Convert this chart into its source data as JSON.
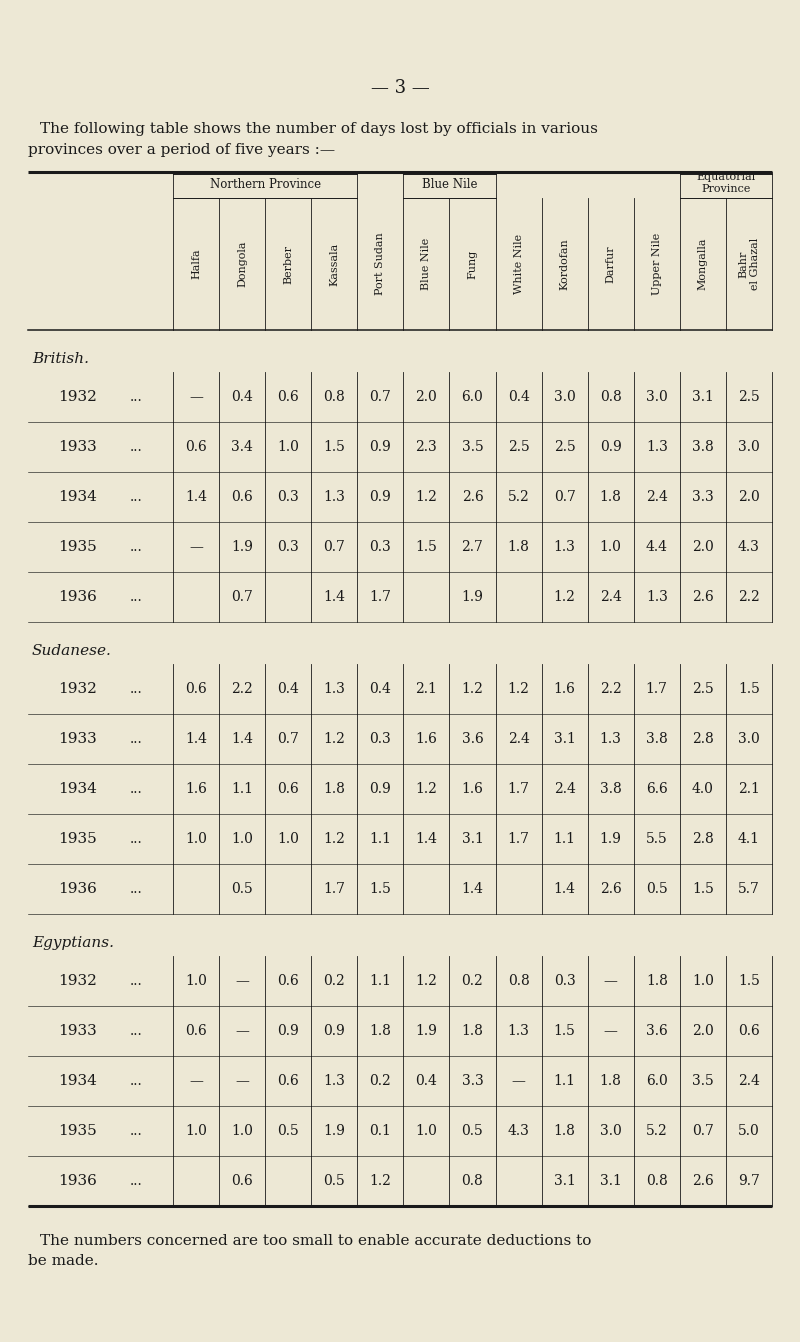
{
  "page_number": "— 3 —",
  "intro_line1": "The following table shows the number of days lost by officials in various",
  "intro_line2": "provinces over a period of five years :—",
  "footer_line1": "The numbers concerned are too small to enable accurate deductions to",
  "footer_line2": "be made.",
  "background_color": "#ede8d5",
  "text_color": "#1a1a1a",
  "columns": [
    "Halfa",
    "Dongola",
    "Berber",
    "Kassala",
    "Port Sudan",
    "Blue Nile",
    "Fung",
    "White Nile",
    "Kordofan",
    "Darfur",
    "Upper Nile",
    "Mongalla",
    "Bahr\nel Ghazal"
  ],
  "sections": [
    {
      "label": "British.",
      "rows": [
        {
          "year": "1932",
          "values": [
            "—",
            "0.4",
            "0.6",
            "0.8",
            "0.7",
            "2.0",
            "6.0",
            "0.4",
            "3.0",
            "0.8",
            "3.0",
            "3.1",
            "2.5"
          ]
        },
        {
          "year": "1933",
          "values": [
            "0.6",
            "3.4",
            "1.0",
            "1.5",
            "0.9",
            "2.3",
            "3.5",
            "2.5",
            "2.5",
            "0.9",
            "1.3",
            "3.8",
            "3.0"
          ]
        },
        {
          "year": "1934",
          "values": [
            "1.4",
            "0.6",
            "0.3",
            "1.3",
            "0.9",
            "1.2",
            "2.6",
            "5.2",
            "0.7",
            "1.8",
            "2.4",
            "3.3",
            "2.0"
          ]
        },
        {
          "year": "1935",
          "values": [
            "—",
            "1.9",
            "0.3",
            "0.7",
            "0.3",
            "1.5",
            "2.7",
            "1.8",
            "1.3",
            "1.0",
            "4.4",
            "2.0",
            "4.3"
          ]
        },
        {
          "year": "1936",
          "values": [
            "",
            "0.7",
            "",
            "1.4",
            "1.7",
            "",
            "1.9",
            "",
            "1.2",
            "2.4",
            "1.3",
            "2.6",
            "2.2"
          ]
        }
      ]
    },
    {
      "label": "Sudanese.",
      "rows": [
        {
          "year": "1932",
          "values": [
            "0.6",
            "2.2",
            "0.4",
            "1.3",
            "0.4",
            "2.1",
            "1.2",
            "1.2",
            "1.6",
            "2.2",
            "1.7",
            "2.5",
            "1.5"
          ]
        },
        {
          "year": "1933",
          "values": [
            "1.4",
            "1.4",
            "0.7",
            "1.2",
            "0.3",
            "1.6",
            "3.6",
            "2.4",
            "3.1",
            "1.3",
            "3.8",
            "2.8",
            "3.0"
          ]
        },
        {
          "year": "1934",
          "values": [
            "1.6",
            "1.1",
            "0.6",
            "1.8",
            "0.9",
            "1.2",
            "1.6",
            "1.7",
            "2.4",
            "3.8",
            "6.6",
            "4.0",
            "2.1"
          ]
        },
        {
          "year": "1935",
          "values": [
            "1.0",
            "1.0",
            "1.0",
            "1.2",
            "1.1",
            "1.4",
            "3.1",
            "1.7",
            "1.1",
            "1.9",
            "5.5",
            "2.8",
            "4.1"
          ]
        },
        {
          "year": "1936",
          "values": [
            "",
            "0.5",
            "",
            "1.7",
            "1.5",
            "",
            "1.4",
            "",
            "1.4",
            "2.6",
            "0.5",
            "1.5",
            "5.7"
          ]
        }
      ]
    },
    {
      "label": "Egyptians.",
      "rows": [
        {
          "year": "1932",
          "values": [
            "1.0",
            "—",
            "0.6",
            "0.2",
            "1.1",
            "1.2",
            "0.2",
            "0.8",
            "0.3",
            "—",
            "1.8",
            "1.0",
            "1.5"
          ]
        },
        {
          "year": "1933",
          "values": [
            "0.6",
            "—",
            "0.9",
            "0.9",
            "1.8",
            "1.9",
            "1.8",
            "1.3",
            "1.5",
            "—",
            "3.6",
            "2.0",
            "0.6"
          ]
        },
        {
          "year": "1934",
          "values": [
            "—",
            "—",
            "0.6",
            "1.3",
            "0.2",
            "0.4",
            "3.3",
            "—",
            "1.1",
            "1.8",
            "6.0",
            "3.5",
            "2.4"
          ]
        },
        {
          "year": "1935",
          "values": [
            "1.0",
            "1.0",
            "0.5",
            "1.9",
            "0.1",
            "1.0",
            "0.5",
            "4.3",
            "1.8",
            "3.0",
            "5.2",
            "0.7",
            "5.0"
          ]
        },
        {
          "year": "1936",
          "values": [
            "",
            "0.6",
            "",
            "0.5",
            "1.2",
            "",
            "0.8",
            "",
            "3.1",
            "3.1",
            "0.8",
            "2.6",
            "9.7"
          ]
        }
      ]
    }
  ]
}
